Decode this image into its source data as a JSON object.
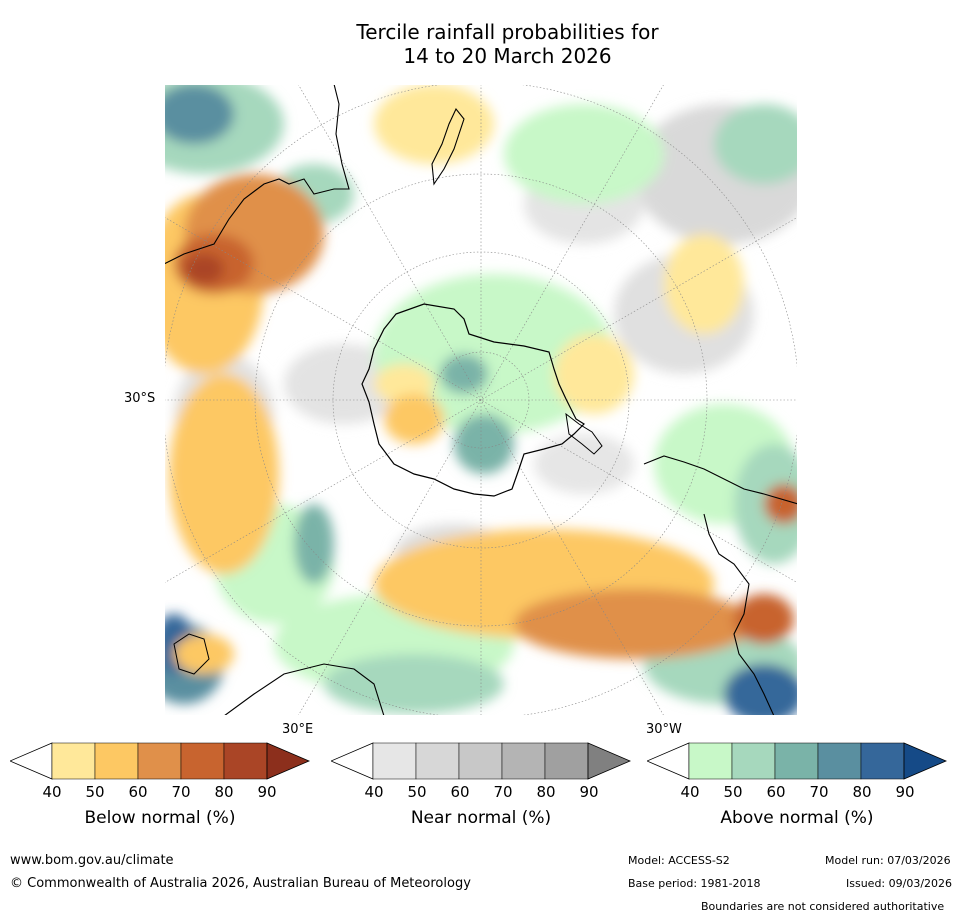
{
  "title": {
    "line1": "Tercile rainfall probabilities for",
    "line2": "14 to 20 March 2026"
  },
  "map": {
    "projection": "south polar stereographic",
    "lat_label": "30°S",
    "lon_labels": {
      "east": "30°E",
      "west": "30°W"
    }
  },
  "colorbars": [
    {
      "title": "Below normal (%)",
      "ticks": [
        "40",
        "50",
        "60",
        "70",
        "80",
        "90"
      ],
      "colors": [
        "#ffffff",
        "#ffe89a",
        "#fdc863",
        "#e0904a",
        "#c8642f",
        "#aa4526",
        "#8c2f1c"
      ]
    },
    {
      "title": "Near normal (%)",
      "ticks": [
        "40",
        "50",
        "60",
        "70",
        "80",
        "90"
      ],
      "colors": [
        "#ffffff",
        "#e6e6e6",
        "#d7d7d7",
        "#c8c8c8",
        "#b4b4b4",
        "#a0a0a0",
        "#808080"
      ]
    },
    {
      "title": "Above normal (%)",
      "ticks": [
        "40",
        "50",
        "60",
        "70",
        "80",
        "90"
      ],
      "colors": [
        "#ffffff",
        "#c8f8c8",
        "#a6d8bd",
        "#7ab3a8",
        "#5a8fa0",
        "#35679a",
        "#154a87"
      ]
    }
  ],
  "footer": {
    "website": "www.bom.gov.au/climate",
    "copyright": "© Commonwealth of Australia 2026, Australian Bureau of Meteorology",
    "model": "Model: ACCESS-S2",
    "model_run": "Model run: 07/03/2026",
    "base_period": "Base period: 1981-2018",
    "issued": "Issued: 09/03/2026",
    "boundaries": "Boundaries are not considered authoritative"
  }
}
